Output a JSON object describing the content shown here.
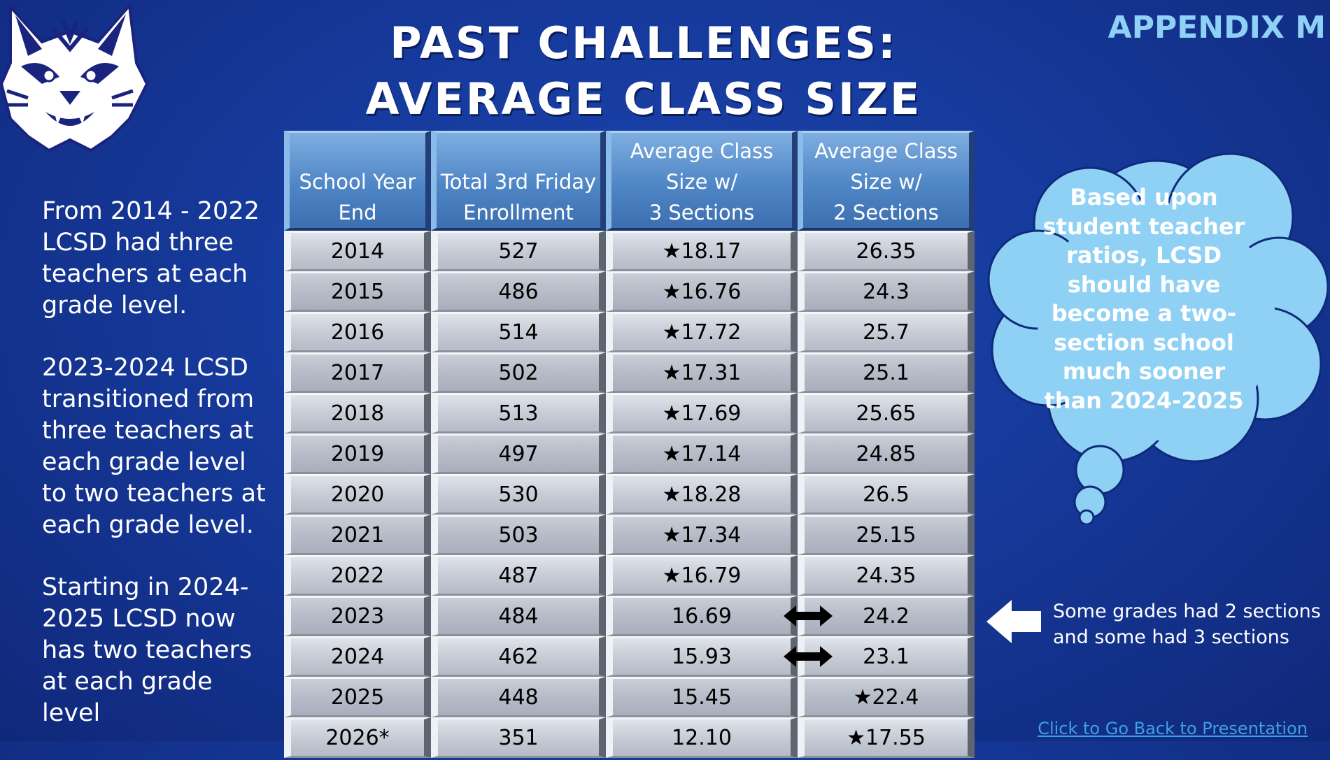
{
  "header": {
    "title_line1": "PAST CHALLENGES:",
    "title_line2": "AVERAGE CLASS SIZE",
    "appendix": "APPENDIX M",
    "logo_icon": "wildcat-mascot-icon"
  },
  "left_panel": {
    "paragraphs": [
      "From 2014 - 2022 LCSD had three teachers at each grade level.",
      "2023-2024 LCSD transitioned from three teachers at each grade level to two teachers at each grade level.",
      "Starting in 2024-2025 LCSD now has two teachers at each grade level"
    ]
  },
  "table": {
    "headers": [
      [
        "School Year",
        "End"
      ],
      [
        "Total 3rd Friday",
        "Enrollment"
      ],
      [
        "Average Class",
        "Size w/",
        "3 Sections"
      ],
      [
        "Average Class",
        "Size w/",
        "2 Sections"
      ]
    ],
    "rows": [
      [
        "2014",
        "527",
        "★18.17",
        "26.35"
      ],
      [
        "2015",
        "486",
        "★16.76",
        "24.3"
      ],
      [
        "2016",
        "514",
        "★17.72",
        "25.7"
      ],
      [
        "2017",
        "502",
        "★17.31",
        "25.1"
      ],
      [
        "2018",
        "513",
        "★17.69",
        "25.65"
      ],
      [
        "2019",
        "497",
        "★17.14",
        "24.85"
      ],
      [
        "2020",
        "530",
        "★18.28",
        "26.5"
      ],
      [
        "2021",
        "503",
        "★17.34",
        "25.15"
      ],
      [
        "2022",
        "487",
        "★16.79",
        "24.35"
      ],
      [
        "2023",
        "484",
        "16.69",
        "24.2"
      ],
      [
        "2024",
        "462",
        "15.93",
        "23.1"
      ],
      [
        "2025",
        "448",
        "15.45",
        "★22.4"
      ],
      [
        "2026*",
        "351",
        "12.10",
        "★17.55"
      ]
    ],
    "double_arrow_rows": [
      9,
      10
    ],
    "double_arrow_icon": "double-arrow-icon"
  },
  "thought_bubble": {
    "lines": [
      "Based upon",
      "student teacher",
      "ratios, LCSD",
      "should have",
      "become a two-",
      "section school",
      "much sooner",
      "than 2024-2025"
    ],
    "color": "#8fd0f5"
  },
  "note": {
    "lines": [
      "Some grades had 2 sections",
      "and some had 3 sections"
    ],
    "icon": "left-arrow-icon"
  },
  "footer": {
    "back_link": "Click to Go Back to Presentation"
  }
}
